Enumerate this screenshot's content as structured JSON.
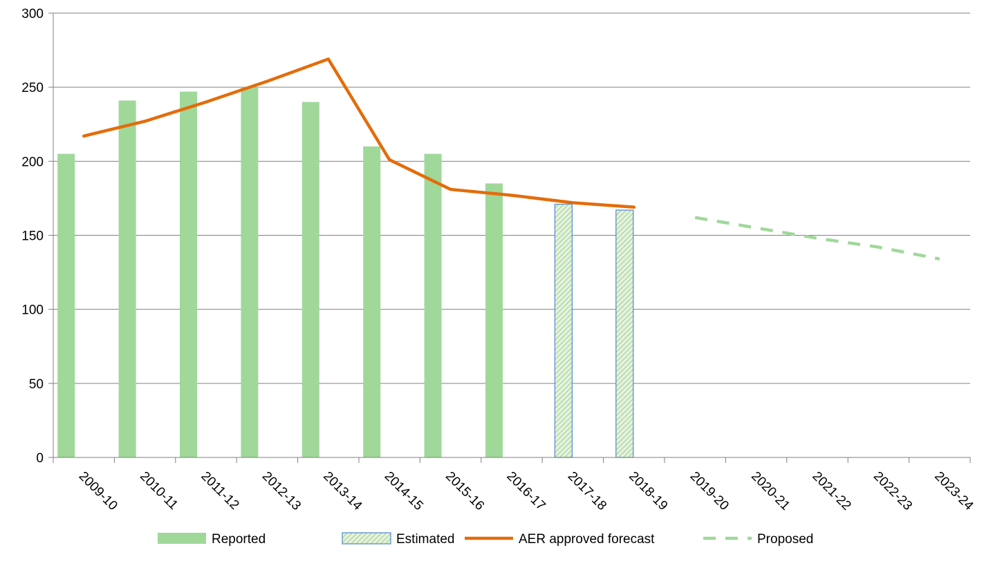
{
  "chart_data": {
    "type": "bar",
    "categories": [
      "2009-10",
      "2010-11",
      "2011-12",
      "2012-13",
      "2013-14",
      "2014-15",
      "2015-16",
      "2016-17",
      "2017-18",
      "2018-19",
      "2019-20",
      "2020-21",
      "2021-22",
      "2022-23",
      "2023-24"
    ],
    "series": [
      {
        "name": "Reported",
        "kind": "bar",
        "values": [
          205,
          241,
          247,
          250,
          240,
          210,
          205,
          185,
          null,
          null,
          null,
          null,
          null,
          null,
          null
        ]
      },
      {
        "name": "Estimated",
        "kind": "bar-hatched",
        "values": [
          null,
          null,
          null,
          null,
          null,
          null,
          null,
          null,
          171,
          167,
          null,
          null,
          null,
          null,
          null
        ]
      },
      {
        "name": "AER approved forecast",
        "kind": "line",
        "values": [
          217,
          227,
          240,
          254,
          269,
          201,
          181,
          177,
          172,
          169,
          null,
          null,
          null,
          null,
          null
        ]
      },
      {
        "name": "Proposed",
        "kind": "dashed-line",
        "values": [
          null,
          null,
          null,
          null,
          null,
          null,
          null,
          null,
          null,
          null,
          162,
          155,
          148,
          142,
          134
        ]
      }
    ],
    "yticks": [
      0,
      50,
      100,
      150,
      200,
      250,
      300
    ],
    "ylim": [
      0,
      300
    ],
    "grid": true,
    "legend_position": "bottom",
    "colors": {
      "reported": "#a0d89a",
      "estimated_fill": "#e4f2dc",
      "estimated_hatch": "#9ccc8e",
      "estimated_border": "#5b8fcf",
      "forecast": "#e46c0a",
      "proposed": "#a0d89a",
      "grid": "#808080",
      "axis": "#808080"
    },
    "title": "",
    "xlabel": "",
    "ylabel": ""
  }
}
